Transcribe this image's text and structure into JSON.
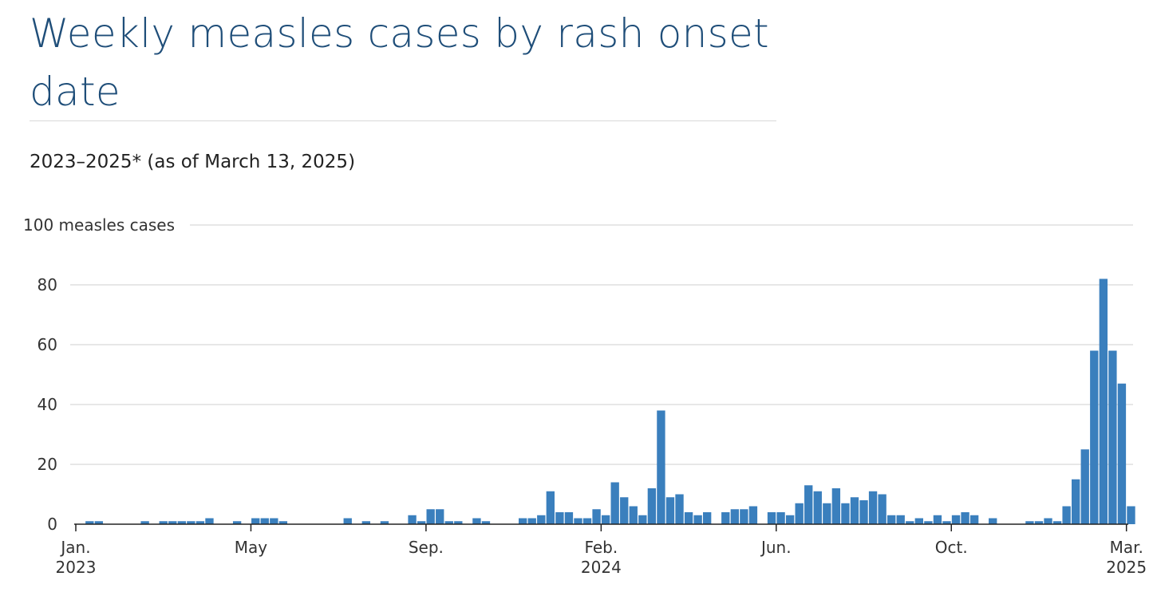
{
  "title": "Weekly measles cases by rash onset date",
  "subtitle": "2023–2025* (as of March 13, 2025)",
  "colors": {
    "bar": "#3a7fbd",
    "title": "#1f4e79",
    "grid": "#cfcfcf",
    "axis": "#222222"
  },
  "chart_data": {
    "type": "bar",
    "title": "Weekly measles cases by rash onset date",
    "subtitle": "2023–2025* (as of March 13, 2025)",
    "ylabel": "measles cases",
    "ylim": [
      0,
      100
    ],
    "yticks": [
      0,
      20,
      40,
      60,
      80,
      100
    ],
    "ytick_labels": [
      "0",
      "20",
      "40",
      "60",
      "80",
      "100 measles cases"
    ],
    "grid": true,
    "x_axis": "weeks, Jan. 2023 – Mar. 2025",
    "xtick_labels": [
      {
        "label": "Jan.",
        "year": "2023"
      },
      {
        "label": "May",
        "year": ""
      },
      {
        "label": "Sep.",
        "year": ""
      },
      {
        "label": "Feb.",
        "year": "2024"
      },
      {
        "label": "Jun.",
        "year": ""
      },
      {
        "label": "Oct.",
        "year": ""
      },
      {
        "label": "Mar.",
        "year": "2025"
      }
    ],
    "xtick_weeks": [
      0,
      19,
      38,
      57,
      76,
      95,
      114
    ],
    "series": [
      {
        "values": [
          0,
          1,
          1,
          0,
          0,
          0,
          0,
          1,
          0,
          1,
          1,
          1,
          1,
          1,
          2,
          0,
          0,
          1,
          0,
          2,
          2,
          2,
          1,
          0,
          0,
          0,
          0,
          0,
          0,
          2,
          0,
          1,
          0,
          1,
          0,
          0,
          3,
          1,
          5,
          5,
          1,
          1,
          0,
          2,
          1,
          0,
          0,
          0,
          2,
          2,
          3,
          11,
          4,
          4,
          2,
          2,
          5,
          3,
          14,
          9,
          6,
          3,
          12,
          38,
          9,
          10,
          4,
          3,
          4,
          0,
          4,
          5,
          5,
          6,
          0,
          4,
          4,
          3,
          7,
          13,
          11,
          7,
          12,
          7,
          9,
          8,
          11,
          10,
          3,
          3,
          1,
          2,
          1,
          3,
          1,
          3,
          4,
          3,
          0,
          2,
          0,
          0,
          0,
          1,
          1,
          2,
          1,
          6,
          15,
          25,
          58,
          82,
          58,
          47,
          6
        ]
      }
    ]
  }
}
